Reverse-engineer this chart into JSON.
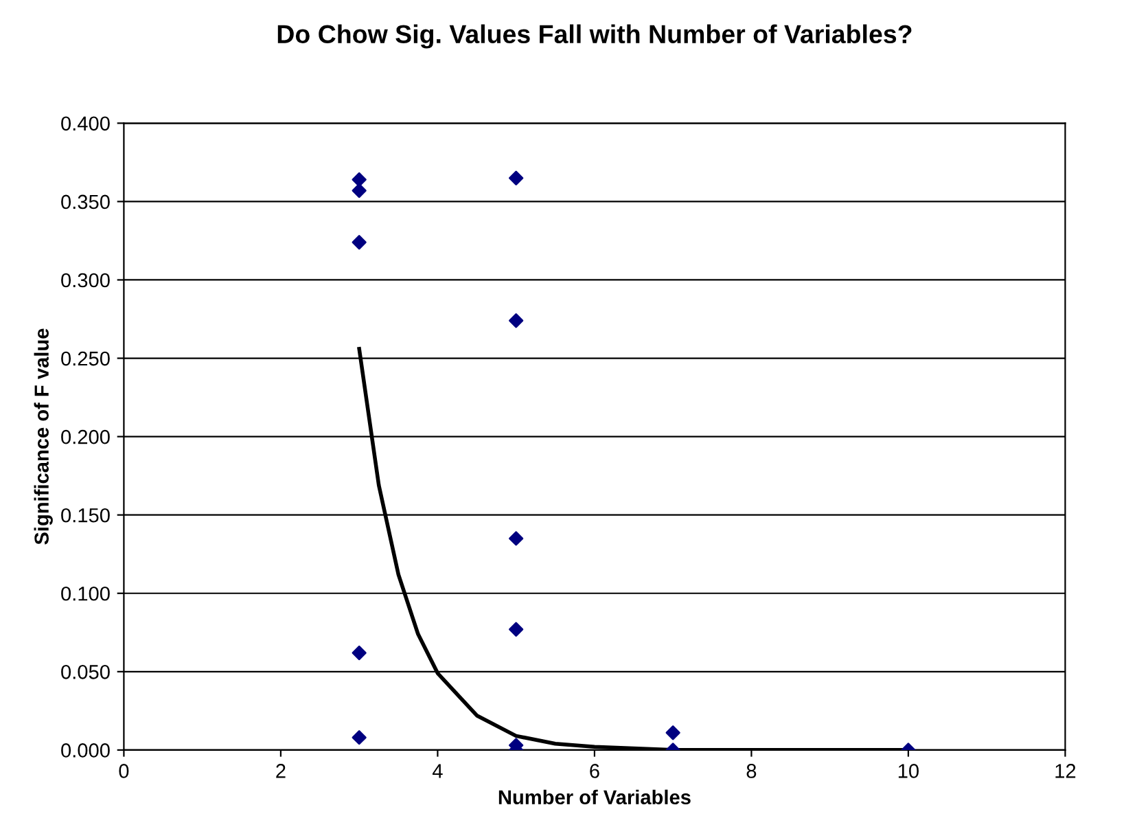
{
  "chart_data": {
    "type": "scatter",
    "title": "Do Chow Sig. Values Fall with Number of Variables?",
    "xlabel": "Number of Variables",
    "ylabel": "Significance of F value",
    "xlim": [
      0,
      12
    ],
    "xticks": [
      0,
      2,
      4,
      6,
      8,
      10,
      12
    ],
    "ylim": [
      0,
      0.4
    ],
    "yticks": [
      {
        "value": 0,
        "label": "0.000"
      },
      {
        "value": 0.05,
        "label": "0.050"
      },
      {
        "value": 0.1,
        "label": "0.100"
      },
      {
        "value": 0.15,
        "label": "0.150"
      },
      {
        "value": 0.2,
        "label": "0.200"
      },
      {
        "value": 0.25,
        "label": "0.250"
      },
      {
        "value": 0.3,
        "label": "0.300"
      },
      {
        "value": 0.35,
        "label": "0.350"
      },
      {
        "value": 0.4,
        "label": "0.400"
      }
    ],
    "grid": "y",
    "marker": "diamond",
    "series": [
      {
        "color": "#000080",
        "x": [
          3,
          3,
          3,
          3,
          3,
          5,
          5,
          5,
          5,
          5,
          5,
          7,
          7,
          10
        ],
        "values": [
          0.364,
          0.357,
          0.324,
          0.062,
          0.008,
          0.365,
          0.274,
          0.135,
          0.077,
          0.003,
          0.0,
          0.011,
          0.0,
          0.0
        ]
      },
      {
        "type": "line",
        "color": "#000000",
        "marker": "none",
        "line_style": "solid",
        "x": [
          3,
          3.25,
          3.5,
          3.75,
          4,
          4.5,
          5,
          5.5,
          6,
          7,
          8,
          10
        ],
        "values": [
          0.256,
          0.169,
          0.112,
          0.074,
          0.049,
          0.022,
          0.009,
          0.004,
          0.002,
          0.0,
          0.0,
          0.0
        ]
      }
    ]
  }
}
